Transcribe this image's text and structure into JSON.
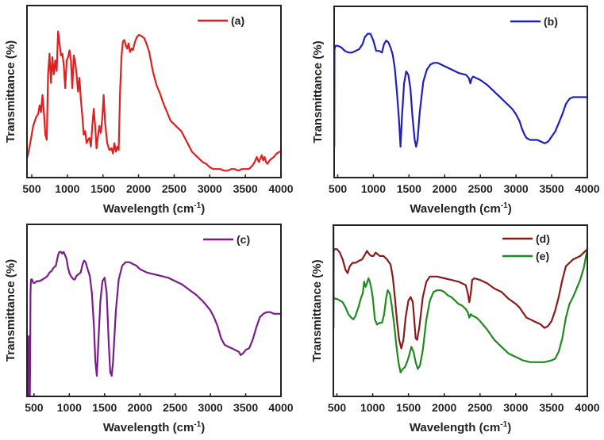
{
  "chart_data": [
    {
      "type": "line",
      "panel": "a",
      "xlabel": "Wavelength (cm-1)",
      "xlabel_main": "Wavelength (cm",
      "xlabel_sup": "-1",
      "xlabel_close": ")",
      "ylabel": "Transmittance (%)",
      "xlim": [
        433,
        4000
      ],
      "ylim": [
        0,
        100
      ],
      "y_units": "relative (no y tick labels shown)",
      "xticks": [
        500,
        1000,
        1500,
        2000,
        2500,
        3000,
        3500,
        4000
      ],
      "grid": false,
      "legend_position": "top-right",
      "series": [
        {
          "name": "(a)",
          "color": "#e02020",
          "x": [
            440,
            470,
            520,
            560,
            590,
            610,
            630,
            650,
            670,
            690,
            710,
            730,
            750,
            770,
            790,
            810,
            830,
            850,
            870,
            890,
            910,
            930,
            950,
            970,
            990,
            1010,
            1030,
            1050,
            1070,
            1090,
            1110,
            1130,
            1150,
            1170,
            1190,
            1210,
            1230,
            1250,
            1270,
            1290,
            1310,
            1330,
            1350,
            1370,
            1390,
            1410,
            1430,
            1450,
            1470,
            1490,
            1510,
            1530,
            1560,
            1590,
            1620,
            1640,
            1660,
            1680,
            1700,
            1720,
            1740,
            1760,
            1780,
            1800,
            1820,
            1840,
            1860,
            1880,
            1900,
            1920,
            1950,
            1980,
            2010,
            2050,
            2080,
            2110,
            2150,
            2200,
            2250,
            2300,
            2350,
            2400,
            2450,
            2500,
            2550,
            2600,
            2650,
            2700,
            2750,
            2800,
            2850,
            2900,
            2950,
            3000,
            3050,
            3100,
            3150,
            3200,
            3250,
            3300,
            3350,
            3400,
            3450,
            3500,
            3550,
            3600,
            3630,
            3660,
            3690,
            3710,
            3730,
            3750,
            3770,
            3790,
            3810,
            3840,
            3870,
            3900,
            3940,
            3980,
            4000
          ],
          "values": [
            12,
            18,
            30,
            35,
            37,
            42,
            38,
            48,
            38,
            25,
            22,
            60,
            72,
            55,
            70,
            60,
            68,
            62,
            85,
            78,
            71,
            72,
            65,
            52,
            68,
            70,
            74,
            68,
            52,
            71,
            67,
            60,
            50,
            58,
            45,
            36,
            25,
            27,
            20,
            22,
            23,
            18,
            30,
            40,
            30,
            17,
            24,
            30,
            26,
            34,
            48,
            32,
            20,
            16,
            17,
            14,
            20,
            15,
            18,
            16,
            50,
            70,
            79,
            80,
            77,
            75,
            78,
            73,
            75,
            74,
            79,
            82,
            83,
            82,
            81,
            78,
            73,
            62,
            54,
            49,
            43,
            38,
            33,
            31,
            29,
            27,
            23,
            19,
            15,
            13,
            11,
            9,
            8,
            6,
            5,
            5,
            5,
            4,
            4,
            5,
            5,
            4,
            5,
            5,
            5,
            7,
            9,
            12,
            9,
            11,
            13,
            10,
            12,
            9,
            8,
            10,
            11,
            12,
            14,
            15,
            15
          ]
        }
      ]
    },
    {
      "type": "line",
      "panel": "b",
      "xlabel": "Wavelength (cm-1)",
      "xlabel_main": "Wavelength (cm",
      "xlabel_sup": "-1",
      "xlabel_close": ")",
      "ylabel": "Transmittance (%)",
      "xlim": [
        450,
        4000
      ],
      "ylim": [
        0,
        100
      ],
      "y_units": "relative (no y tick labels shown)",
      "xticks": [
        500,
        1000,
        1500,
        2000,
        2500,
        3000,
        3500,
        4000
      ],
      "grid": false,
      "legend_position": "top-right",
      "series": [
        {
          "name": "(b)",
          "color": "#1f1fbf",
          "x": [
            452,
            455,
            470,
            500,
            550,
            600,
            650,
            700,
            750,
            800,
            850,
            880,
            920,
            960,
            1000,
            1040,
            1080,
            1120,
            1150,
            1180,
            1210,
            1240,
            1270,
            1300,
            1330,
            1360,
            1380,
            1400,
            1430,
            1460,
            1490,
            1520,
            1550,
            1580,
            1600,
            1620,
            1650,
            1700,
            1750,
            1800,
            1850,
            1900,
            1950,
            2000,
            2100,
            2200,
            2300,
            2340,
            2360,
            2380,
            2400,
            2450,
            2500,
            2600,
            2700,
            2750,
            2800,
            2850,
            2900,
            2950,
            3000,
            3050,
            3080,
            3120,
            3150,
            3200,
            3250,
            3300,
            3350,
            3400,
            3450,
            3500,
            3550,
            3600,
            3650,
            3700,
            3750,
            3800,
            3900,
            4000
          ],
          "values": [
            18,
            75,
            77,
            77,
            76,
            74,
            73,
            73,
            74,
            75,
            78,
            82,
            84,
            84,
            80,
            74,
            74,
            73,
            78,
            80,
            79,
            76,
            72,
            64,
            50,
            33,
            18,
            35,
            55,
            62,
            60,
            52,
            35,
            22,
            18,
            22,
            38,
            56,
            63,
            66,
            67,
            67,
            66,
            65,
            63,
            61,
            60,
            58,
            55,
            58,
            59,
            58,
            57,
            54,
            50,
            48,
            46,
            44,
            42,
            40,
            37,
            33,
            29,
            25,
            23,
            22,
            22,
            22,
            21,
            20,
            21,
            24,
            27,
            32,
            37,
            43,
            46,
            47,
            47,
            47
          ]
        }
      ]
    },
    {
      "type": "line",
      "panel": "c",
      "xlabel": "Wavelength (cm-1)",
      "xlabel_main": "Wavelength (cm",
      "xlabel_sup": "-1",
      "xlabel_close": ")",
      "ylabel": "Transmittance (%)",
      "xlim": [
        400,
        4000
      ],
      "ylim": [
        0,
        100
      ],
      "y_units": "relative (no y tick labels shown)",
      "xticks": [
        500,
        1000,
        1500,
        2000,
        2500,
        3000,
        3500,
        4000
      ],
      "grid": false,
      "legend_position": "top-right",
      "series": [
        {
          "name": "(c)",
          "color": "#7a1c8c",
          "x": [
            400,
            410,
            420,
            425,
            430,
            435,
            440,
            445,
            450,
            455,
            460,
            470,
            490,
            510,
            540,
            580,
            620,
            660,
            690,
            720,
            750,
            780,
            810,
            840,
            860,
            880,
            900,
            920,
            940,
            960,
            980,
            1000,
            1020,
            1040,
            1060,
            1080,
            1100,
            1130,
            1160,
            1190,
            1210,
            1230,
            1260,
            1290,
            1320,
            1350,
            1370,
            1390,
            1410,
            1440,
            1470,
            1500,
            1530,
            1560,
            1580,
            1600,
            1620,
            1660,
            1700,
            1750,
            1800,
            1850,
            1900,
            1950,
            2000,
            2100,
            2200,
            2300,
            2400,
            2500,
            2600,
            2700,
            2800,
            2900,
            3000,
            3050,
            3100,
            3150,
            3200,
            3250,
            3300,
            3350,
            3400,
            3430,
            3460,
            3500,
            3550,
            3600,
            3650,
            3700,
            3750,
            3800,
            3850,
            3900,
            3950,
            4000
          ],
          "values": [
            0,
            30,
            0,
            35,
            5,
            30,
            0,
            20,
            60,
            67,
            68,
            68,
            66,
            66,
            67,
            67,
            68,
            69,
            70,
            72,
            73,
            75,
            76,
            82,
            84,
            84,
            83,
            84,
            82,
            80,
            75,
            72,
            70,
            69,
            68,
            68,
            70,
            71,
            72,
            77,
            79,
            78,
            74,
            70,
            60,
            40,
            20,
            12,
            30,
            55,
            67,
            69,
            60,
            30,
            14,
            12,
            20,
            50,
            68,
            76,
            78,
            78,
            77,
            76,
            74,
            72,
            71,
            70,
            69,
            67,
            65,
            62,
            59,
            55,
            50,
            46,
            41,
            34,
            30,
            29,
            28,
            27,
            26,
            24,
            25,
            27,
            28,
            33,
            40,
            46,
            48,
            49,
            49,
            48,
            48,
            48
          ]
        }
      ]
    },
    {
      "type": "line",
      "panel": "d-e",
      "xlabel": "Wavelength (cm-1)",
      "xlabel_main": "Wavelength (cm",
      "xlabel_sup": "-1",
      "xlabel_close": ")",
      "ylabel": "Transmittance (%)",
      "xlim": [
        450,
        4000
      ],
      "ylim": [
        0,
        100
      ],
      "y_units": "relative (no y tick labels shown)",
      "xticks": [
        500,
        1000,
        1500,
        2000,
        2500,
        3000,
        3500,
        4000
      ],
      "grid": false,
      "legend_position": "top-right",
      "series": [
        {
          "name": "(d)",
          "color": "#8b1a1a",
          "x": [
            452,
            455,
            470,
            500,
            540,
            580,
            620,
            650,
            680,
            720,
            760,
            800,
            850,
            880,
            920,
            950,
            980,
            1010,
            1040,
            1070,
            1100,
            1150,
            1200,
            1250,
            1280,
            1310,
            1340,
            1370,
            1400,
            1430,
            1460,
            1500,
            1530,
            1560,
            1580,
            1600,
            1620,
            1650,
            1700,
            1750,
            1800,
            1900,
            2000,
            2100,
            2200,
            2300,
            2330,
            2350,
            2370,
            2390,
            2420,
            2500,
            2600,
            2700,
            2800,
            2900,
            3000,
            3050,
            3100,
            3150,
            3200,
            3250,
            3300,
            3350,
            3400,
            3450,
            3500,
            3550,
            3600,
            3650,
            3700,
            3750,
            3800,
            3900,
            4000
          ],
          "values": [
            40,
            85,
            86,
            86,
            84,
            80,
            74,
            72,
            76,
            78,
            78,
            79,
            80,
            82,
            85,
            83,
            82,
            82,
            84,
            83,
            82,
            82,
            80,
            77,
            70,
            58,
            44,
            33,
            28,
            33,
            46,
            56,
            58,
            55,
            45,
            34,
            33,
            40,
            58,
            67,
            70,
            70,
            69,
            68,
            67,
            65,
            60,
            55,
            60,
            68,
            69,
            68,
            66,
            63,
            61,
            57,
            54,
            52,
            49,
            46,
            45,
            44,
            43,
            42,
            40,
            41,
            44,
            50,
            58,
            68,
            76,
            78,
            80,
            82,
            86
          ]
        },
        {
          "name": "(e)",
          "color": "#1f8a1f",
          "x": [
            452,
            455,
            470,
            500,
            540,
            580,
            620,
            660,
            700,
            730,
            760,
            800,
            840,
            860,
            880,
            900,
            920,
            940,
            960,
            980,
            1000,
            1030,
            1060,
            1100,
            1130,
            1160,
            1190,
            1210,
            1240,
            1270,
            1300,
            1330,
            1360,
            1390,
            1420,
            1450,
            1480,
            1510,
            1540,
            1570,
            1600,
            1630,
            1660,
            1700,
            1750,
            1800,
            1850,
            1900,
            1950,
            2000,
            2050,
            2100,
            2150,
            2200,
            2250,
            2300,
            2330,
            2350,
            2370,
            2400,
            2450,
            2500,
            2600,
            2700,
            2800,
            2900,
            3000,
            3100,
            3200,
            3300,
            3400,
            3500,
            3550,
            3600,
            3650,
            3700,
            3750,
            3800,
            3850,
            3900,
            3950,
            4000
          ],
          "values": [
            99,
            58,
            57,
            57,
            56,
            55,
            52,
            48,
            46,
            45,
            47,
            52,
            58,
            60,
            67,
            64,
            66,
            69,
            67,
            63,
            58,
            45,
            42,
            43,
            43,
            48,
            58,
            62,
            60,
            52,
            42,
            30,
            20,
            14,
            16,
            17,
            20,
            24,
            29,
            26,
            20,
            16,
            18,
            27,
            45,
            56,
            61,
            62,
            62,
            61,
            59,
            58,
            56,
            54,
            53,
            51,
            49,
            46,
            48,
            47,
            46,
            44,
            39,
            33,
            29,
            25,
            23,
            21,
            20,
            20,
            20,
            21,
            22,
            26,
            34,
            46,
            54,
            58,
            63,
            68,
            75,
            86
          ]
        }
      ]
    }
  ]
}
